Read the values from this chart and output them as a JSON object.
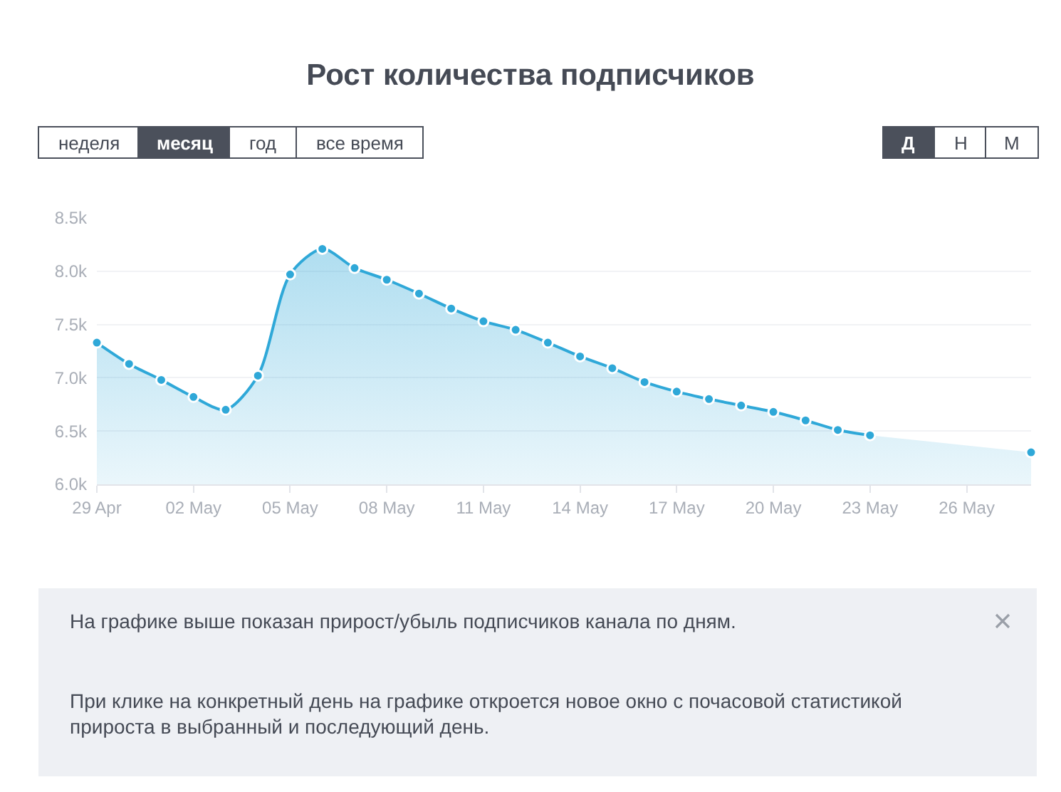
{
  "chart_data": {
    "type": "area",
    "title": "Рост количества подписчиков",
    "x": [
      "--04-29",
      "--04-30",
      "--05-01",
      "--05-02",
      "--05-03",
      "--05-04",
      "--05-05",
      "--05-06",
      "--05-07",
      "--05-08",
      "--05-09",
      "--05-10",
      "--05-11",
      "--05-12",
      "--05-13",
      "--05-14",
      "--05-15",
      "--05-16",
      "--05-17",
      "--05-18",
      "--05-19",
      "--05-20",
      "--05-21",
      "--05-22",
      "--05-23",
      "--05-24",
      "--05-25",
      "--05-26",
      "--05-27",
      "--05-28"
    ],
    "series": [
      {
        "color": "#2fa8d8",
        "values": [
          7330,
          7130,
          6980,
          6820,
          6700,
          7020,
          7970,
          8210,
          8030,
          7920,
          7790,
          7650,
          7530,
          7450,
          7330,
          7200,
          7090,
          6960,
          6870,
          6800,
          6740,
          6680,
          6600,
          6510,
          6460,
          null,
          null,
          null,
          null,
          6300
        ]
      }
    ],
    "xlim": [
      "--04-29",
      "--05-28"
    ],
    "xticks": [
      {
        "value": "--04-29",
        "label": "29 Apr"
      },
      {
        "value": "--05-02",
        "label": "02 May"
      },
      {
        "value": "--05-05",
        "label": "05 May"
      },
      {
        "value": "--05-08",
        "label": "08 May"
      },
      {
        "value": "--05-11",
        "label": "11 May"
      },
      {
        "value": "--05-14",
        "label": "14 May"
      },
      {
        "value": "--05-17",
        "label": "17 May"
      },
      {
        "value": "--05-20",
        "label": "20 May"
      },
      {
        "value": "--05-23",
        "label": "23 May"
      },
      {
        "value": "--05-26",
        "label": "26 May"
      }
    ],
    "ylim": [
      6000,
      8500
    ],
    "yticks": [
      {
        "value": 6000,
        "label": "6.0k"
      },
      {
        "value": 6500,
        "label": "6.5k"
      },
      {
        "value": 7000,
        "label": "7.0k"
      },
      {
        "value": 7500,
        "label": "7.5k"
      },
      {
        "value": 8000,
        "label": "8.0k"
      },
      {
        "value": 8500,
        "label": "8.5k"
      }
    ],
    "grid": "y",
    "marker": "circle",
    "line_style": "solid",
    "annotations": [
      "неделя",
      "месяц",
      "год",
      "все время",
      "Д",
      "Н",
      "М",
      "На графике выше показан прирост/убыль подписчиков канала по дням.",
      "При клике на конкретный день на графике откроется новое окно с почасовой статистикой прироста в выбранный и последующий день."
    ]
  }
}
